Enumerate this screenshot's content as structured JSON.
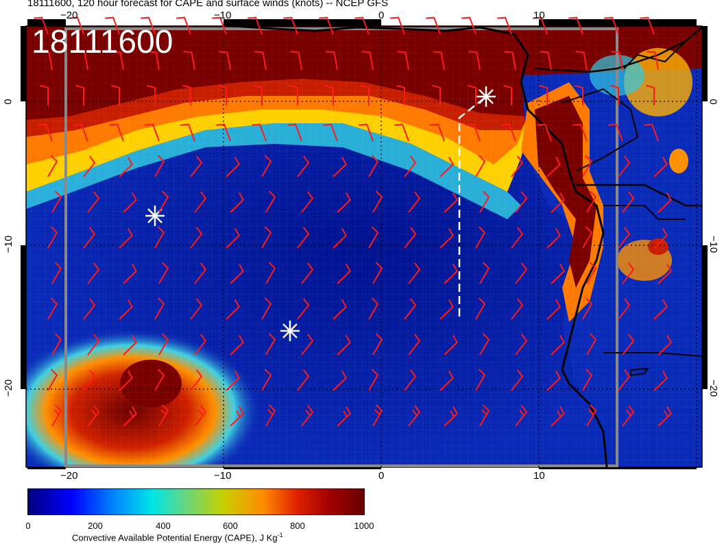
{
  "title": "18111600, 120 hour forecast for CAPE and surface winds (knots) -- NCEP GFS",
  "date_label": "18111600",
  "map": {
    "lon_ticks": [
      "−20",
      "−10",
      "0",
      "10"
    ],
    "lat_ticks": [
      "0",
      "−10",
      "−20"
    ],
    "colors": {
      "low": "#0a1aa8",
      "high": "#7a0000",
      "barb": "#ff1a1a",
      "coast": "#000000",
      "marker": "#ffffff",
      "track": "#ffffff",
      "box": "#808080"
    },
    "markers": [
      "storm-marker-1",
      "storm-marker-2",
      "storm-marker-3"
    ],
    "barb_icon": "wind-barb-icon"
  },
  "colorbar": {
    "ticks": [
      "0",
      "200",
      "400",
      "600",
      "800",
      "1000"
    ],
    "label_main": "Convective Available Potential Energy (CAPE), J Kg",
    "label_sup": "-1"
  }
}
